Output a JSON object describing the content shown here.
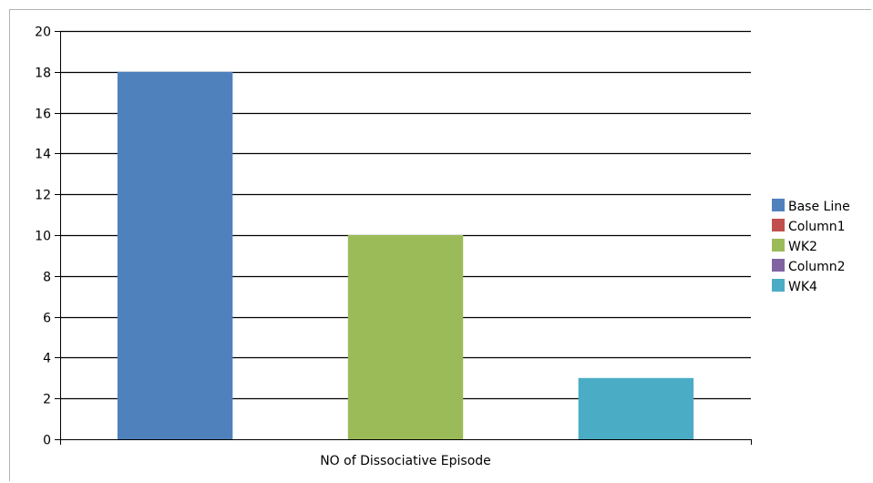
{
  "chart_data": {
    "type": "bar",
    "categories": [
      "NO of Dissociative Episode"
    ],
    "series": [
      {
        "name": "Base Line",
        "values": [
          18
        ],
        "color": "#4f81bd"
      },
      {
        "name": "Column1",
        "values": [
          0
        ],
        "color": "#c0504d"
      },
      {
        "name": "WK2",
        "values": [
          10
        ],
        "color": "#9bbb59"
      },
      {
        "name": "Column2",
        "values": [
          0
        ],
        "color": "#8064a2"
      },
      {
        "name": "WK4",
        "values": [
          3
        ],
        "color": "#4bacc6"
      }
    ],
    "title": "",
    "xlabel": "",
    "ylabel": "",
    "ylim": [
      0,
      20
    ],
    "ytick_step": 2,
    "grid": true,
    "legend_position": "right"
  }
}
